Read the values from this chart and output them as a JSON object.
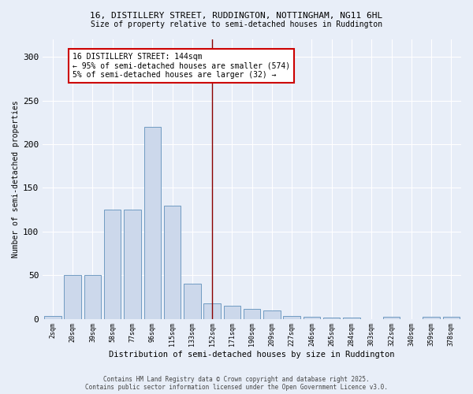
{
  "title1": "16, DISTILLERY STREET, RUDDINGTON, NOTTINGHAM, NG11 6HL",
  "title2": "Size of property relative to semi-detached houses in Ruddington",
  "xlabel": "Distribution of semi-detached houses by size in Ruddington",
  "ylabel": "Number of semi-detached properties",
  "bar_labels": [
    "2sqm",
    "20sqm",
    "39sqm",
    "58sqm",
    "77sqm",
    "96sqm",
    "115sqm",
    "133sqm",
    "152sqm",
    "171sqm",
    "190sqm",
    "209sqm",
    "227sqm",
    "246sqm",
    "265sqm",
    "284sqm",
    "303sqm",
    "322sqm",
    "340sqm",
    "359sqm",
    "378sqm"
  ],
  "bar_values": [
    3,
    50,
    50,
    125,
    125,
    220,
    130,
    40,
    18,
    15,
    11,
    10,
    3,
    2,
    1,
    1,
    0,
    2,
    0,
    2,
    2
  ],
  "bar_color": "#ccd8eb",
  "bar_edge_color": "#6090bb",
  "bg_color": "#e8eef8",
  "grid_color": "#ffffff",
  "vline_x_idx": 8,
  "vline_color": "#8b0000",
  "annotation_text": "16 DISTILLERY STREET: 144sqm\n← 95% of semi-detached houses are smaller (574)\n5% of semi-detached houses are larger (32) →",
  "annotation_box_color": "#ffffff",
  "annotation_box_edge": "#cc0000",
  "footnote": "Contains HM Land Registry data © Crown copyright and database right 2025.\nContains public sector information licensed under the Open Government Licence v3.0.",
  "ylim": [
    0,
    320
  ],
  "yticks": [
    0,
    50,
    100,
    150,
    200,
    250,
    300
  ]
}
